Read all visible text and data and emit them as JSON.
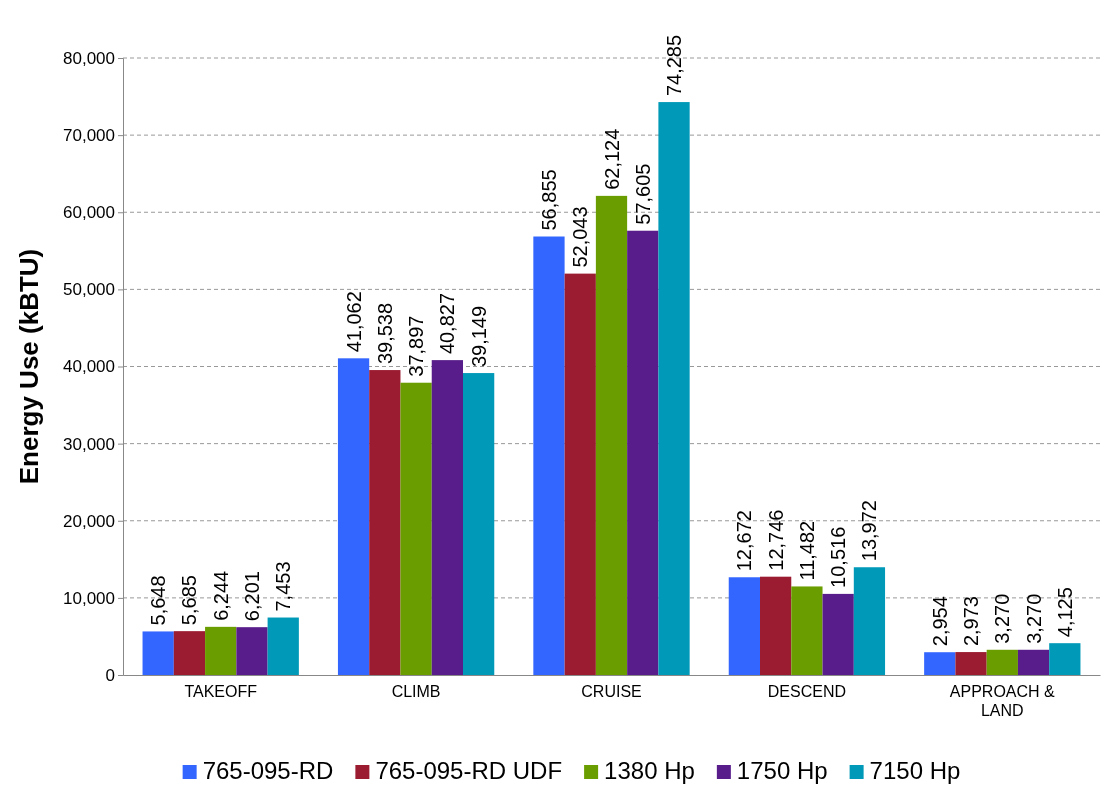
{
  "chart_data": {
    "type": "bar",
    "ylabel": "Energy Use (kBTU)",
    "categories": [
      "TAKEOFF",
      "CLIMB",
      "CRUISE",
      "DESCEND",
      "APPROACH & LAND"
    ],
    "series": [
      {
        "name": "765-095-RD",
        "color": "#3366ff",
        "values": [
          5648,
          41062,
          56855,
          12672,
          2954
        ],
        "value_labels": [
          "5,648",
          "41,062",
          "56,855",
          "12,672",
          "2,954"
        ]
      },
      {
        "name": "765-095-RD UDF",
        "color": "#9b1c31",
        "values": [
          5685,
          39538,
          52043,
          12746,
          2973
        ],
        "value_labels": [
          "5,685",
          "39,538",
          "52,043",
          "12,746",
          "2,973"
        ]
      },
      {
        "name": "1380 Hp",
        "color": "#6a9e00",
        "values": [
          6244,
          37897,
          62124,
          11482,
          3270
        ],
        "value_labels": [
          "6,244",
          "37,897",
          "62,124",
          "11,482",
          "3,270"
        ]
      },
      {
        "name": "1750 Hp",
        "color": "#581d8a",
        "values": [
          6201,
          40827,
          57605,
          10516,
          3270
        ],
        "value_labels": [
          "6,201",
          "40,827",
          "57,605",
          "10,516",
          "3,270"
        ]
      },
      {
        "name": "7150 Hp",
        "color": "#0099b8",
        "values": [
          7453,
          39149,
          74285,
          13972,
          4125
        ],
        "value_labels": [
          "7,453",
          "39,149",
          "74,285",
          "13,972",
          "4,125"
        ]
      }
    ],
    "ylim": [
      0,
      80000
    ],
    "yticks": [
      {
        "value": 0,
        "label": "0"
      },
      {
        "value": 10000,
        "label": "10,000"
      },
      {
        "value": 20000,
        "label": "20,000"
      },
      {
        "value": 30000,
        "label": "30,000"
      },
      {
        "value": 40000,
        "label": "40,000"
      },
      {
        "value": 50000,
        "label": "50,000"
      },
      {
        "value": 60000,
        "label": "60,000"
      },
      {
        "value": 70000,
        "label": "70,000"
      },
      {
        "value": 80000,
        "label": "80,000"
      }
    ],
    "grid": "y",
    "legend": "bottom"
  }
}
